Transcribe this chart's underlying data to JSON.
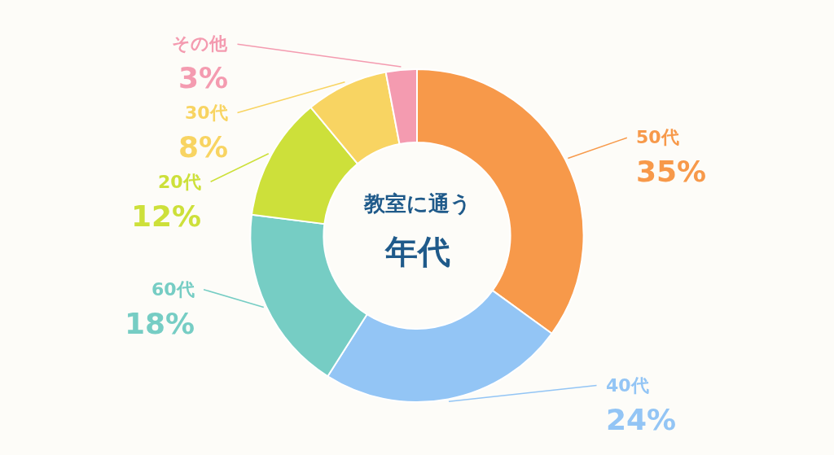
{
  "chart_data": {
    "type": "donut",
    "title": "教室に通う",
    "subtitle": "年代",
    "categories": [
      "50代",
      "40代",
      "60代",
      "20代",
      "30代",
      "その他"
    ],
    "values": [
      35,
      24,
      18,
      12,
      8,
      3
    ],
    "value_labels": [
      "35%",
      "24%",
      "18%",
      "12%",
      "8%",
      "3%"
    ],
    "colors": [
      "#f7994a",
      "#93c5f5",
      "#76cdc4",
      "#cde03a",
      "#f8d462",
      "#f49bb0"
    ],
    "legend": false
  }
}
